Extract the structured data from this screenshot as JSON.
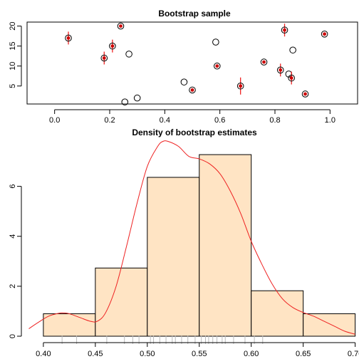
{
  "colors": {
    "bar_fill": "#FFE4C4",
    "bar_stroke": "#000000",
    "density": "#EE2222",
    "marker_fill": "#CC0000",
    "rug": "#BBBBBB",
    "circle": "#000000"
  },
  "chart_data": [
    {
      "type": "scatter",
      "title": "Bootstrap sample",
      "xlabel": "",
      "ylabel": "",
      "xlim": [
        -0.1,
        1.1
      ],
      "ylim": [
        0.5,
        21
      ],
      "xticks": [
        0.0,
        0.2,
        0.4,
        0.6,
        0.8,
        1.0
      ],
      "xtick_labels": [
        "0.0",
        "0.2",
        "0.4",
        "0.6",
        "0.8",
        "1.0"
      ],
      "yticks": [
        5,
        10,
        15,
        20
      ],
      "ytick_labels": [
        "5",
        "10",
        "15",
        "20"
      ],
      "grid": false,
      "points": [
        {
          "x": 0.05,
          "y": 17,
          "selected": true,
          "count": 2
        },
        {
          "x": 0.18,
          "y": 12,
          "selected": true,
          "count": 2
        },
        {
          "x": 0.21,
          "y": 15,
          "selected": true,
          "count": 2
        },
        {
          "x": 0.24,
          "y": 20,
          "selected": true,
          "count": 1
        },
        {
          "x": 0.255,
          "y": 1,
          "selected": false,
          "count": 0
        },
        {
          "x": 0.27,
          "y": 13,
          "selected": false,
          "count": 0
        },
        {
          "x": 0.3,
          "y": 2,
          "selected": false,
          "count": 0
        },
        {
          "x": 0.47,
          "y": 6,
          "selected": false,
          "count": 0
        },
        {
          "x": 0.5,
          "y": 4,
          "selected": true,
          "count": 1
        },
        {
          "x": 0.585,
          "y": 16,
          "selected": false,
          "count": 0
        },
        {
          "x": 0.59,
          "y": 10,
          "selected": true,
          "count": 1
        },
        {
          "x": 0.675,
          "y": 5,
          "selected": true,
          "count": 3
        },
        {
          "x": 0.76,
          "y": 11,
          "selected": true,
          "count": 1
        },
        {
          "x": 0.82,
          "y": 9,
          "selected": true,
          "count": 2
        },
        {
          "x": 0.835,
          "y": 19,
          "selected": true,
          "count": 2
        },
        {
          "x": 0.85,
          "y": 8,
          "selected": false,
          "count": 0
        },
        {
          "x": 0.86,
          "y": 7,
          "selected": true,
          "count": 2
        },
        {
          "x": 0.865,
          "y": 14,
          "selected": false,
          "count": 0
        },
        {
          "x": 0.91,
          "y": 3,
          "selected": true,
          "count": 1
        },
        {
          "x": 0.98,
          "y": 18,
          "selected": true,
          "count": 1
        }
      ]
    },
    {
      "type": "bar",
      "title": "Density of bootstrap estimates",
      "xlabel": "",
      "ylabel": "",
      "xlim": [
        0.4,
        0.7
      ],
      "ylim": [
        0,
        7.7
      ],
      "xticks": [
        0.4,
        0.45,
        0.5,
        0.55,
        0.6,
        0.65,
        0.7
      ],
      "xtick_labels": [
        "0.40",
        "0.45",
        "0.50",
        "0.55",
        "0.60",
        "0.65",
        "0.70"
      ],
      "yticks": [
        0,
        2,
        4,
        6
      ],
      "ytick_labels": [
        "0",
        "2",
        "4",
        "6"
      ],
      "grid": false,
      "bins": [
        {
          "from": 0.4,
          "to": 0.45,
          "value": 0.9
        },
        {
          "from": 0.45,
          "to": 0.5,
          "value": 2.73
        },
        {
          "from": 0.5,
          "to": 0.55,
          "value": 6.36
        },
        {
          "from": 0.55,
          "to": 0.6,
          "value": 7.27
        },
        {
          "from": 0.6,
          "to": 0.65,
          "value": 1.82
        },
        {
          "from": 0.65,
          "to": 0.7,
          "value": 0.9
        }
      ],
      "density": {
        "x": [
          0.386,
          0.395,
          0.405,
          0.415,
          0.42,
          0.425,
          0.435,
          0.445,
          0.452,
          0.46,
          0.47,
          0.48,
          0.49,
          0.5,
          0.51,
          0.515,
          0.52,
          0.53,
          0.54,
          0.55,
          0.56,
          0.57,
          0.58,
          0.59,
          0.6,
          0.61,
          0.62,
          0.63,
          0.64,
          0.65,
          0.66,
          0.67,
          0.68,
          0.69,
          0.7
        ],
        "y": [
          0.3,
          0.55,
          0.8,
          0.92,
          0.93,
          0.9,
          0.75,
          0.6,
          0.6,
          0.95,
          2.0,
          3.6,
          5.3,
          6.8,
          7.6,
          7.8,
          7.8,
          7.6,
          7.2,
          7.1,
          6.9,
          6.5,
          5.8,
          4.9,
          3.8,
          2.9,
          2.1,
          1.5,
          1.15,
          0.95,
          0.8,
          0.6,
          0.4,
          0.2,
          0.08
        ]
      },
      "rug": [
        0.418,
        0.432,
        0.461,
        0.478,
        0.486,
        0.492,
        0.503,
        0.506,
        0.512,
        0.518,
        0.524,
        0.527,
        0.533,
        0.539,
        0.546,
        0.552,
        0.556,
        0.559,
        0.563,
        0.567,
        0.572,
        0.575,
        0.583,
        0.594,
        0.603,
        0.611
      ]
    }
  ]
}
